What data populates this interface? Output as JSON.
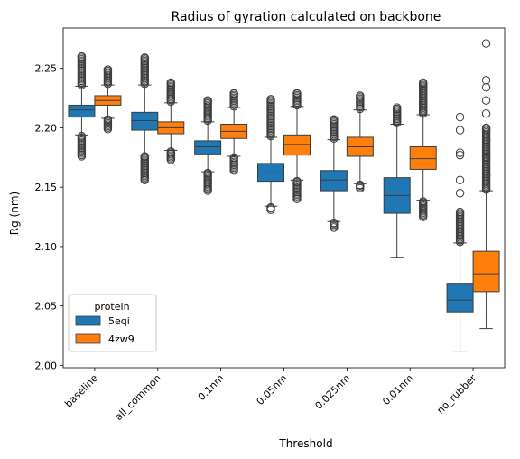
{
  "chart_data": {
    "type": "box",
    "title": "Radius of gyration calculated on backbone",
    "xlabel": "Threshold",
    "ylabel": "Rg (nm)",
    "ylim": [
      1.998,
      2.284
    ],
    "yticks": [
      2.0,
      2.05,
      2.1,
      2.15,
      2.2,
      2.25
    ],
    "ytick_labels": [
      "2.00",
      "2.05",
      "2.10",
      "2.15",
      "2.20",
      "2.25"
    ],
    "categories": [
      "baseline",
      "all_common",
      "0.1nm",
      "0.05nm",
      "0.025nm",
      "0.01nm",
      "no_rubber"
    ],
    "legend": {
      "title": "protein",
      "position": "lower-left"
    },
    "series": [
      {
        "name": "5eqi",
        "color": "#1f77b4",
        "boxes": [
          {
            "whislo": 2.194,
            "q1": 2.209,
            "median": 2.215,
            "q3": 2.219,
            "whishi": 2.235,
            "outliers_low": [
              2.176,
              2.193
            ],
            "outliers_high": [
              2.236,
              2.26
            ]
          },
          {
            "whislo": 2.177,
            "q1": 2.198,
            "median": 2.206,
            "q3": 2.213,
            "whishi": 2.236,
            "outliers_low": [
              2.156,
              2.176
            ],
            "outliers_high": [
              2.237,
              2.259
            ]
          },
          {
            "whislo": 2.163,
            "q1": 2.178,
            "median": 2.184,
            "q3": 2.189,
            "whishi": 2.205,
            "outliers_low": [
              2.147,
              2.162
            ],
            "outliers_high": [
              2.206,
              2.223
            ]
          },
          {
            "whislo": 2.134,
            "q1": 2.155,
            "median": 2.162,
            "q3": 2.17,
            "whishi": 2.192,
            "outliers_low": [
              2.131,
              2.133
            ],
            "outliers_high": [
              2.193,
              2.224
            ]
          },
          {
            "whislo": 2.121,
            "q1": 2.147,
            "median": 2.156,
            "q3": 2.164,
            "whishi": 2.19,
            "outliers_low": [
              2.116,
              2.12
            ],
            "outliers_high": [
              2.191,
              2.207
            ]
          },
          {
            "whislo": 2.091,
            "q1": 2.128,
            "median": 2.143,
            "q3": 2.158,
            "whishi": 2.203,
            "outliers_low": [],
            "outliers_high": [
              2.204,
              2.217
            ]
          },
          {
            "whislo": 2.012,
            "q1": 2.045,
            "median": 2.055,
            "q3": 2.069,
            "whishi": 2.103,
            "outliers_low": [],
            "outliers_high": [
              2.104,
              2.145,
              2.156,
              2.177,
              2.179,
              2.198,
              2.209
            ]
          }
        ]
      },
      {
        "name": "4zw9",
        "color": "#ff7f0e",
        "boxes": [
          {
            "whislo": 2.208,
            "q1": 2.219,
            "median": 2.223,
            "q3": 2.227,
            "whishi": 2.236,
            "outliers_low": [
              2.199,
              2.207
            ],
            "outliers_high": [
              2.237,
              2.249
            ]
          },
          {
            "whislo": 2.181,
            "q1": 2.195,
            "median": 2.2,
            "q3": 2.205,
            "whishi": 2.221,
            "outliers_low": [
              2.173,
              2.18
            ],
            "outliers_high": [
              2.222,
              2.238
            ]
          },
          {
            "whislo": 2.176,
            "q1": 2.191,
            "median": 2.197,
            "q3": 2.203,
            "whishi": 2.217,
            "outliers_low": [
              2.164,
              2.175
            ],
            "outliers_high": [
              2.218,
              2.229
            ]
          },
          {
            "whislo": 2.156,
            "q1": 2.177,
            "median": 2.186,
            "q3": 2.194,
            "whishi": 2.218,
            "outliers_low": [
              2.14,
              2.155
            ],
            "outliers_high": [
              2.219,
              2.229
            ]
          },
          {
            "whislo": 2.153,
            "q1": 2.176,
            "median": 2.184,
            "q3": 2.192,
            "whishi": 2.215,
            "outliers_low": [
              2.149,
              2.152
            ],
            "outliers_high": [
              2.216,
              2.227
            ]
          },
          {
            "whislo": 2.139,
            "q1": 2.165,
            "median": 2.174,
            "q3": 2.184,
            "whishi": 2.211,
            "outliers_low": [
              2.125,
              2.138
            ],
            "outliers_high": [
              2.212,
              2.238
            ]
          },
          {
            "whislo": 2.031,
            "q1": 2.062,
            "median": 2.077,
            "q3": 2.096,
            "whishi": 2.147,
            "outliers_low": [],
            "outliers_high": [
              2.148,
              2.16,
              2.175,
              2.19,
              2.2,
              2.212,
              2.223,
              2.234,
              2.24,
              2.271
            ]
          }
        ]
      }
    ]
  }
}
